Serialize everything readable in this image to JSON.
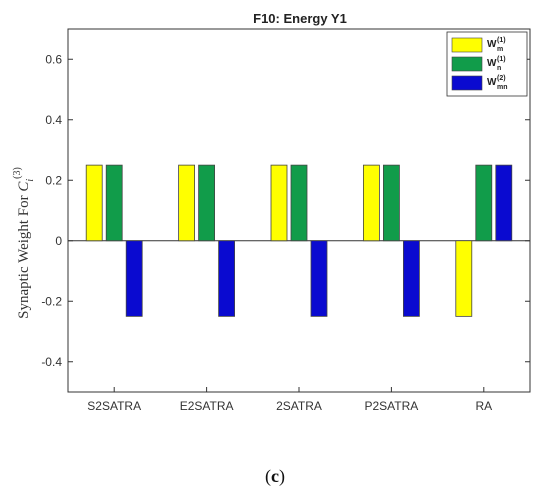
{
  "chart_data": {
    "type": "bar",
    "title": "F10: Energy Y1",
    "ylabel_prefix": "Synaptic Weight For ",
    "ylabel_var": "C",
    "ylabel_sub": "i",
    "ylabel_sup": "(3)",
    "ylim": [
      -0.5,
      0.7
    ],
    "yticks": [
      -0.4,
      -0.2,
      0,
      0.2,
      0.4,
      0.6
    ],
    "ytick_labels": [
      "-0.4",
      "-0.2",
      "0",
      "0.2",
      "0.4",
      "0.6"
    ],
    "categories": [
      "S2SATRA",
      "E2SATRA",
      "2SATRA",
      "P2SATRA",
      "RA"
    ],
    "series": [
      {
        "name": "W",
        "sup": "(1)",
        "sub": "m",
        "color": "#ffff00",
        "values": [
          0.25,
          0.25,
          0.25,
          0.25,
          -0.25
        ]
      },
      {
        "name": "W",
        "sup": "(1)",
        "sub": "n",
        "color": "#119c4a",
        "values": [
          0.25,
          0.25,
          0.25,
          0.25,
          0.25
        ]
      },
      {
        "name": "W",
        "sup": "(2)",
        "sub": "mn",
        "color": "#0a0ad0",
        "values": [
          -0.25,
          -0.25,
          -0.25,
          -0.25,
          0.25
        ]
      }
    ],
    "legend_position": "top-right",
    "grid": false
  },
  "caption": {
    "open": "(",
    "letter": "c",
    "close": ")"
  }
}
